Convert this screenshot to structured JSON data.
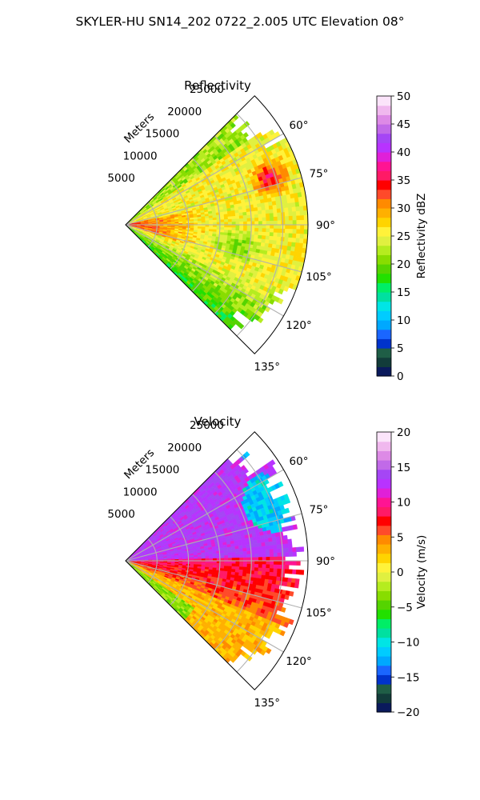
{
  "suptitle": "SKYLER-HU  SN14_202  0722_2.005 UTC Elevation 08°",
  "chart_data": [
    {
      "type": "heatmap",
      "projection": "polar-sector",
      "title": "Reflectivity",
      "range_label": "Meters",
      "range_ticks": [
        5000,
        10000,
        15000,
        20000,
        25000
      ],
      "range_tick_labels": [
        "5000",
        "10000",
        "15000",
        "20000",
        "25000"
      ],
      "rmax": 29000,
      "azimuth_range_deg": [
        45,
        135
      ],
      "azimuth_ticks_deg": [
        60,
        75,
        90,
        105,
        120,
        135
      ],
      "azimuth_tick_labels": [
        "60°",
        "75°",
        "90°",
        "105°",
        "120°",
        "135°"
      ],
      "grid": true,
      "colorbar": {
        "label": "Reflectivity dBZ",
        "min": 0,
        "max": 50,
        "ticks": [
          0,
          5,
          10,
          15,
          20,
          25,
          30,
          35,
          40,
          45,
          50
        ],
        "tick_labels": [
          "0",
          "5",
          "10",
          "15",
          "20",
          "25",
          "30",
          "35",
          "40",
          "45",
          "50"
        ],
        "colors": [
          "#0a1a5c",
          "#123c3a",
          "#1f5e46",
          "#0033cc",
          "#1a66ff",
          "#00a8ff",
          "#00ccff",
          "#00e5e5",
          "#00e0a0",
          "#00ee66",
          "#22e000",
          "#55d400",
          "#88dd00",
          "#b5ec1f",
          "#e0f040",
          "#fff23a",
          "#ffd400",
          "#ffb000",
          "#ff8a00",
          "#ff4a2a",
          "#ff0000",
          "#ff1a66",
          "#ff1493",
          "#e020d8",
          "#b833ff",
          "#a546f5",
          "#c16ae8",
          "#dd8ae6",
          "#f0b8ee",
          "#fbe4fa"
        ]
      },
      "field": {
        "base": 26,
        "features": [
          {
            "az": 72,
            "r_frac": 0.8,
            "value": 37,
            "note": "strong core near 75° far range"
          },
          {
            "az": 90,
            "r_frac": 0.25,
            "value": 34,
            "note": "enhanced band near radar along 90–100°"
          },
          {
            "az": 100,
            "r_frac": 0.55,
            "value": 21,
            "note": "weaker area ~100°"
          },
          {
            "az": 115,
            "r_frac": 0.5,
            "value": 19,
            "note": "weak edge toward 120–135°"
          }
        ]
      }
    },
    {
      "type": "heatmap",
      "projection": "polar-sector",
      "title": "Velocity",
      "range_label": "Meters",
      "range_ticks": [
        5000,
        10000,
        15000,
        20000,
        25000
      ],
      "range_tick_labels": [
        "5000",
        "10000",
        "15000",
        "20000",
        "25000"
      ],
      "rmax": 29000,
      "azimuth_range_deg": [
        45,
        135
      ],
      "azimuth_ticks_deg": [
        60,
        75,
        90,
        105,
        120,
        135
      ],
      "azimuth_tick_labels": [
        "60°",
        "75°",
        "90°",
        "105°",
        "120°",
        "135°"
      ],
      "grid": true,
      "colorbar": {
        "label": "Velocity (m/s)",
        "min": -20,
        "max": 20,
        "ticks": [
          -20,
          -15,
          -10,
          -5,
          0,
          5,
          10,
          15,
          20
        ],
        "tick_labels": [
          "−20",
          "−15",
          "−10",
          "−5",
          "0",
          "5",
          "10",
          "15",
          "20"
        ],
        "colors": [
          "#0a1a5c",
          "#123c3a",
          "#1f5e46",
          "#0033cc",
          "#1a66ff",
          "#00a8ff",
          "#00ccff",
          "#00e5e5",
          "#00e0a0",
          "#00ee66",
          "#22e000",
          "#55d400",
          "#88dd00",
          "#b5ec1f",
          "#e0f040",
          "#fff23a",
          "#ffd400",
          "#ffb000",
          "#ff8a00",
          "#ff4a2a",
          "#ff0000",
          "#ff1a66",
          "#ff1493",
          "#e020d8",
          "#b833ff",
          "#a546f5",
          "#c16ae8",
          "#dd8ae6",
          "#f0b8ee",
          "#fbe4fa"
        ]
      },
      "field": {
        "features": [
          {
            "az_range": [
              45,
              90
            ],
            "value": 14,
            "note": "receding (magenta) north of 90°"
          },
          {
            "az_range": [
              90,
              110
            ],
            "value": 8,
            "note": "red band just south of 90°"
          },
          {
            "az_range": [
              110,
              135
            ],
            "value": 2,
            "note": "yellow toward 120–135°"
          },
          {
            "az": 68,
            "r_frac": 0.8,
            "value": -10,
            "note": "approaching (cyan) pocket near 60–75° far range"
          }
        ]
      }
    }
  ]
}
